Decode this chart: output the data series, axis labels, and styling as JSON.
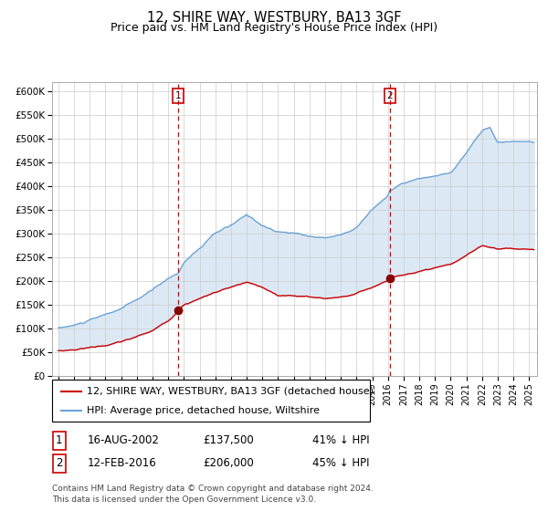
{
  "title": "12, SHIRE WAY, WESTBURY, BA13 3GF",
  "subtitle": "Price paid vs. HM Land Registry's House Price Index (HPI)",
  "ylim": [
    0,
    620000
  ],
  "yticks": [
    0,
    50000,
    100000,
    150000,
    200000,
    250000,
    300000,
    350000,
    400000,
    450000,
    500000,
    550000,
    600000
  ],
  "ytick_labels": [
    "£0",
    "£50K",
    "£100K",
    "£150K",
    "£200K",
    "£250K",
    "£300K",
    "£350K",
    "£400K",
    "£450K",
    "£500K",
    "£550K",
    "£600K"
  ],
  "hpi_color": "#6ba3d6",
  "price_color": "#cc0000",
  "fill_color": "#dce9f5",
  "vline_color": "#cc0000",
  "marker_color": "#880000",
  "purchase1_date": 2002.62,
  "purchase1_price": 137500,
  "purchase1_label": "1",
  "purchase2_date": 2016.12,
  "purchase2_price": 206000,
  "purchase2_label": "2",
  "legend_line1": "12, SHIRE WAY, WESTBURY, BA13 3GF (detached house)",
  "legend_line2": "HPI: Average price, detached house, Wiltshire",
  "info1_date": "16-AUG-2002",
  "info1_price": "£137,500",
  "info1_pct": "41% ↓ HPI",
  "info2_date": "12-FEB-2016",
  "info2_price": "£206,000",
  "info2_pct": "45% ↓ HPI",
  "footer": "Contains HM Land Registry data © Crown copyright and database right 2024.\nThis data is licensed under the Open Government Licence v3.0.",
  "title_fontsize": 10.5,
  "subtitle_fontsize": 9,
  "tick_fontsize": 7.5,
  "legend_fontsize": 8,
  "info_fontsize": 8.5,
  "footer_fontsize": 6.5
}
